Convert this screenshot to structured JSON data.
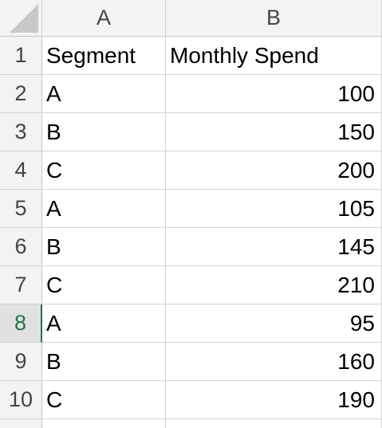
{
  "columns": [
    "A",
    "B"
  ],
  "selected_row": "8",
  "rows": [
    {
      "num": "1",
      "a": "Segment",
      "b": "Monthly Spend"
    },
    {
      "num": "2",
      "a": "A",
      "b": "100"
    },
    {
      "num": "3",
      "a": "B",
      "b": "150"
    },
    {
      "num": "4",
      "a": "C",
      "b": "200"
    },
    {
      "num": "5",
      "a": "A",
      "b": "105"
    },
    {
      "num": "6",
      "a": "B",
      "b": "145"
    },
    {
      "num": "7",
      "a": "C",
      "b": "210"
    },
    {
      "num": "8",
      "a": "A",
      "b": "95"
    },
    {
      "num": "9",
      "a": "B",
      "b": "160"
    },
    {
      "num": "10",
      "a": "C",
      "b": "190"
    }
  ]
}
